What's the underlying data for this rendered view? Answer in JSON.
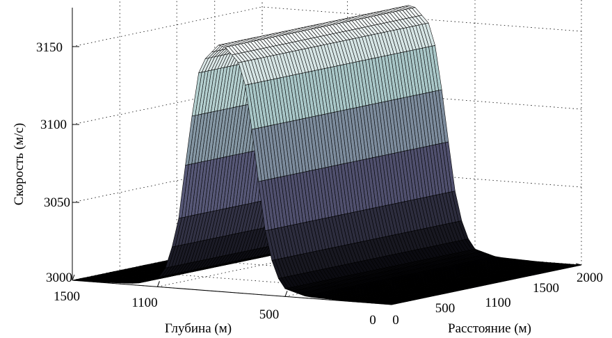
{
  "chart_data": {
    "type": "surface",
    "title": "",
    "zlabel": "Скорость (м/с)",
    "xlabel": "Расстояние (м)",
    "ylabel": "Глубина (м)",
    "x_ticks": [
      "0",
      "500",
      "1100",
      "1500",
      "2000"
    ],
    "y_ticks": [
      "0",
      "500",
      "1100",
      "1500"
    ],
    "z_ticks": [
      "3000",
      "3050",
      "3100",
      "3150"
    ],
    "xlim": [
      0,
      2000
    ],
    "ylim": [
      0,
      1500
    ],
    "zlim": [
      3000,
      3150
    ],
    "grid": true,
    "colormap": "bone",
    "surface": {
      "description_of_shape": "ridge along distance axis",
      "base_velocity": 3000,
      "peak_velocity": 3160,
      "ridge_depth_center": 800,
      "ridge_half_width": 330,
      "profile_depth": [
        0,
        200,
        400,
        500,
        550,
        600,
        650,
        700,
        800,
        900,
        950,
        1000,
        1050,
        1100,
        1200,
        1400,
        1500
      ],
      "profile_velocity": [
        3000,
        3000,
        3001,
        3005,
        3015,
        3045,
        3100,
        3145,
        3160,
        3145,
        3100,
        3045,
        3015,
        3005,
        3001,
        3000,
        3000
      ]
    }
  }
}
